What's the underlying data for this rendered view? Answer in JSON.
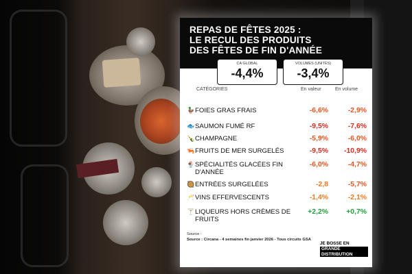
{
  "card": {
    "title_lines": [
      "REPAS DE FÊTES 2025 :",
      "LE RECUL DES PRODUITS",
      "DES FÊTES DE FIN D'ANNÉE"
    ]
  },
  "kpis": [
    {
      "label": "CA GLOBAL",
      "value": "-4,4%"
    },
    {
      "label": "VOLUMES (UNITÉS)",
      "value": "-3,4%"
    }
  ],
  "columns": {
    "category": "CATÉGORIES",
    "value": "En valeur",
    "volume": "En volume"
  },
  "rows": [
    {
      "icon": "🦆",
      "icon_name": "duck-icon",
      "label": "FOIES GRAS FRAIS",
      "value": "-6,6%",
      "volume": "-2,9%",
      "value_color": "#e8541e",
      "volume_color": "#e8541e"
    },
    {
      "icon": "🐟",
      "icon_name": "fish-icon",
      "label": "SAUMON FUMÉ RF",
      "value": "-9,5%",
      "volume": "-7,6%",
      "value_color": "#d62a1e",
      "volume_color": "#d62a1e"
    },
    {
      "icon": "🍾",
      "icon_name": "champagne-icon",
      "label": "CHAMPAGNE",
      "value": "-5,9%",
      "volume": "-6,0%",
      "value_color": "#e8541e",
      "volume_color": "#e8541e"
    },
    {
      "icon": "🦐",
      "icon_name": "shrimp-icon",
      "label": "FRUITS DE MER SURGELÉS",
      "value": "-9,5%",
      "volume": "-10,9%",
      "value_color": "#d62a1e",
      "volume_color": "#d62a1e"
    },
    {
      "icon": "🍨",
      "icon_name": "ice-cream-icon",
      "label": "SPÉCIALITÉS GLACÉES FIN D'ANNÉE",
      "value": "-6,0%",
      "volume": "-4,7%",
      "value_color": "#e8541e",
      "volume_color": "#e8541e"
    },
    {
      "icon": "🥘",
      "icon_name": "dish-icon",
      "label": "ENTRÉES SURGELÉES",
      "value": "-2,8",
      "volume": "-5,7%",
      "value_color": "#f0781e",
      "volume_color": "#e8541e"
    },
    {
      "icon": "🥂",
      "icon_name": "glasses-icon",
      "label": "VINS EFFERVESCENTS",
      "value": "-1,4%",
      "volume": "-2,1%",
      "value_color": "#f0781e",
      "volume_color": "#f0781e"
    },
    {
      "icon": "🍸",
      "icon_name": "liqueur-icon",
      "label": "LIQUEURS HORS CRÈMES DE FRUITS",
      "value": "+2,2%",
      "volume": "+0,7%",
      "value_color": "#1f9e3a",
      "volume_color": "#1f9e3a"
    }
  ],
  "source": {
    "label": "Source :",
    "text": "Source : Circana - 4 semaines fin janvier 2026 - Tous circuits GSA"
  },
  "brand": {
    "line1": "JE BOSSE EN",
    "line2": "GRANDE DISTRIBUTION"
  }
}
